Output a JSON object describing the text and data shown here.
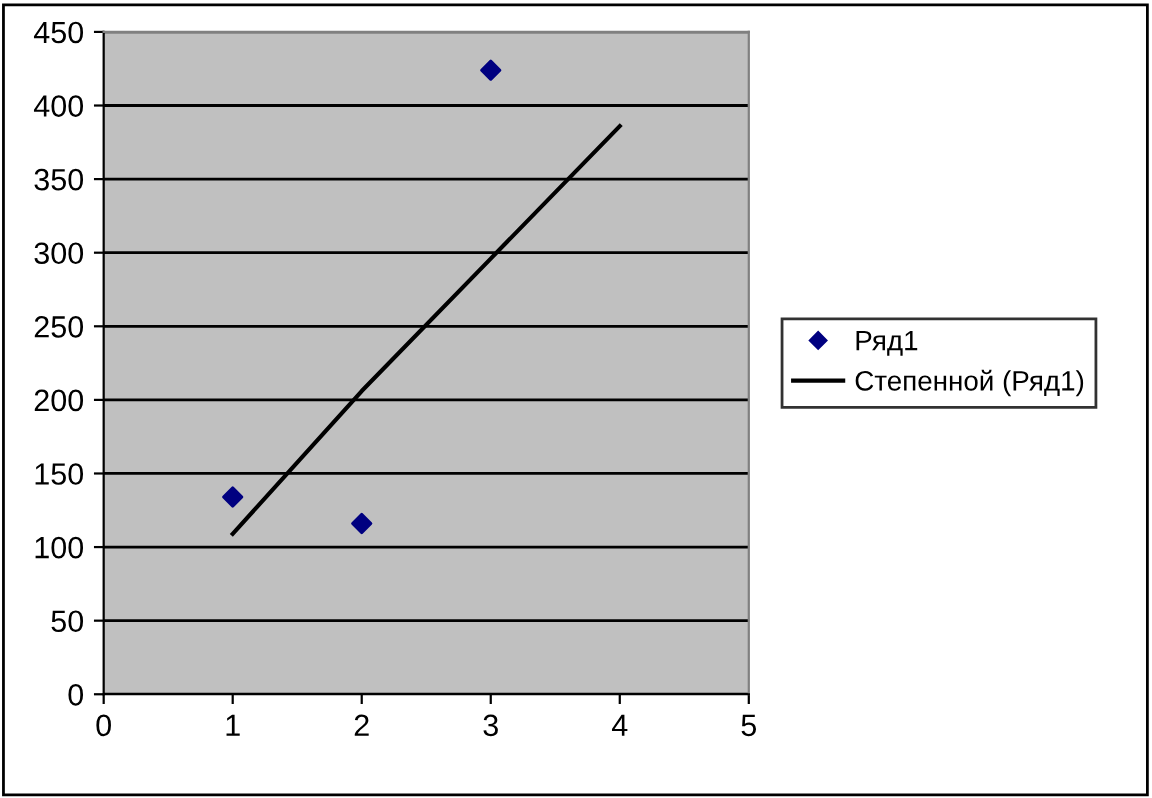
{
  "chart_data": {
    "type": "scatter",
    "xlim": [
      0,
      5
    ],
    "xticks": [
      0,
      1,
      2,
      3,
      4,
      5
    ],
    "ylim": [
      0,
      450
    ],
    "yticks": [
      0,
      50,
      100,
      150,
      200,
      250,
      300,
      350,
      400,
      450
    ],
    "grid": "y",
    "legend": "right",
    "marker": "diamond",
    "series": [
      {
        "name": "Ряд1",
        "color": "#000080",
        "x": [
          1,
          2,
          3
        ],
        "values": [
          134,
          116,
          424
        ]
      },
      {
        "name": "Степенной (Ряд1)",
        "type": "line",
        "color": "#000000",
        "marker": "none",
        "x": [
          1,
          2,
          3,
          4
        ],
        "values": [
          109,
          206,
          296,
          386
        ]
      }
    ]
  }
}
